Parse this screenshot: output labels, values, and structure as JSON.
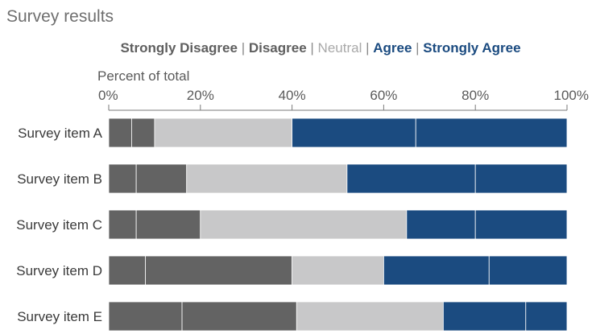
{
  "chart_data": {
    "type": "bar",
    "orientation": "horizontal",
    "stacked": true,
    "title": "Survey results",
    "xlabel": "Percent of total",
    "xlim": [
      0,
      100
    ],
    "x_ticks": [
      "0%",
      "20%",
      "40%",
      "60%",
      "80%",
      "100%"
    ],
    "grid": false,
    "legend_position": "top",
    "categories": [
      "Survey item A",
      "Survey item B",
      "Survey item C",
      "Survey item D",
      "Survey item E"
    ],
    "series": [
      {
        "name": "Strongly Disagree",
        "color": "#636363",
        "values": [
          5,
          6,
          6,
          8,
          16
        ]
      },
      {
        "name": "Disagree",
        "color": "#636363",
        "values": [
          5,
          11,
          14,
          32,
          25
        ]
      },
      {
        "name": "Neutral",
        "color": "#c8c8c9",
        "values": [
          30,
          35,
          45,
          20,
          32
        ]
      },
      {
        "name": "Agree",
        "color": "#1b4b80",
        "values": [
          27,
          28,
          15,
          23,
          18
        ]
      },
      {
        "name": "Strongly Agree",
        "color": "#1b4b80",
        "values": [
          33,
          20,
          20,
          17,
          9
        ]
      }
    ],
    "legend_separator": "|",
    "legend_colors": {
      "Strongly Disagree": "#5f5f5f",
      "Disagree": "#5f5f5f",
      "Neutral": "#a9a9a9",
      "Agree": "#1b4b80",
      "Strongly Agree": "#1b4b80",
      "separator": "#8a8a8a"
    }
  }
}
